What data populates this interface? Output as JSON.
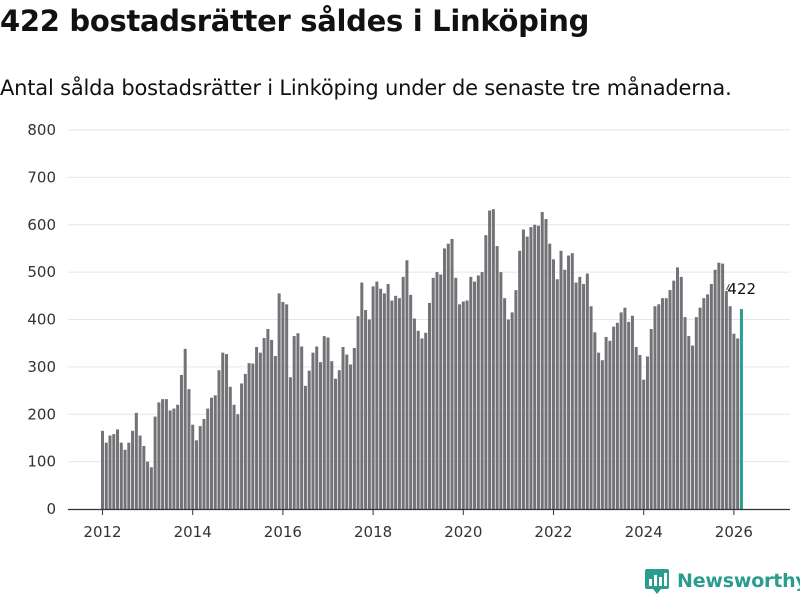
{
  "title": "422 bostadsrätter såldes i Linköping",
  "subtitle": "Antal sålda bostadsrätter i Linköping under de senaste tre månaderna.",
  "brand": "Newsworthy",
  "colors": {
    "bar": "#727277",
    "highlight": "#2a9d8f",
    "grid": "#e6e6e6"
  },
  "chart_data": {
    "type": "bar",
    "title": "422 bostadsrätter såldes i Linköping",
    "xlabel": "",
    "ylabel": "",
    "ylim": [
      0,
      800
    ],
    "yticks": [
      0,
      100,
      200,
      300,
      400,
      500,
      600,
      700,
      800
    ],
    "xticks": [
      "2012",
      "2014",
      "2016",
      "2018",
      "2020",
      "2022",
      "2024",
      "2026"
    ],
    "start": "2012-01",
    "end": "2026-03",
    "frequency": "monthly",
    "values": [
      165,
      140,
      155,
      158,
      168,
      140,
      125,
      140,
      165,
      203,
      155,
      133,
      100,
      88,
      195,
      225,
      232,
      232,
      208,
      212,
      220,
      283,
      338,
      253,
      178,
      145,
      175,
      190,
      212,
      235,
      240,
      293,
      330,
      327,
      258,
      220,
      200,
      265,
      285,
      308,
      307,
      342,
      330,
      361,
      380,
      357,
      323,
      455,
      437,
      432,
      278,
      365,
      371,
      343,
      260,
      292,
      330,
      343,
      310,
      365,
      362,
      312,
      275,
      293,
      342,
      326,
      305,
      340,
      407,
      478,
      420,
      400,
      470,
      480,
      465,
      455,
      475,
      440,
      450,
      445,
      490,
      525,
      452,
      402,
      376,
      360,
      372,
      435,
      488,
      500,
      495,
      550,
      560,
      570,
      488,
      432,
      438,
      440,
      490,
      480,
      493,
      500,
      578,
      630,
      633,
      555,
      500,
      445,
      400,
      415,
      462,
      545,
      590,
      575,
      595,
      600,
      598,
      627,
      612,
      560,
      527,
      485,
      545,
      505,
      535,
      540,
      478,
      490,
      475,
      497,
      428,
      373,
      330,
      314,
      363,
      355,
      385,
      393,
      415,
      425,
      395,
      408,
      342,
      325,
      273,
      322,
      380,
      428,
      432,
      445,
      445,
      462,
      482,
      510,
      490,
      405,
      365,
      345,
      405,
      425,
      445,
      453,
      475,
      505,
      520,
      518,
      460,
      428,
      370,
      360,
      422
    ],
    "highlight_last": 1,
    "annotation": {
      "text": "422",
      "value": 422
    }
  }
}
